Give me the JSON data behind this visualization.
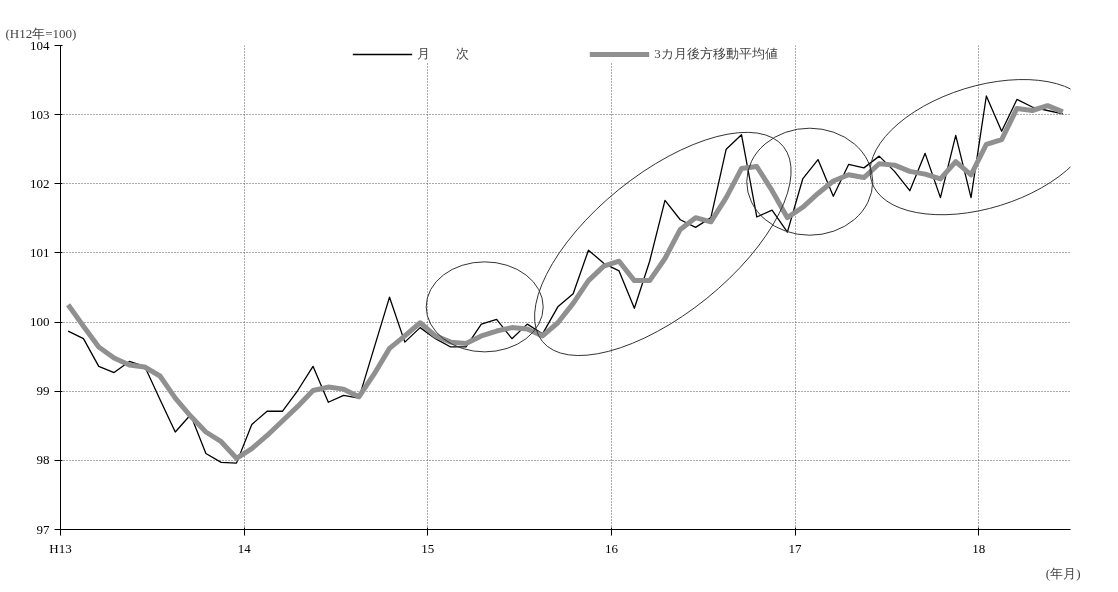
{
  "chart_data": {
    "type": "line",
    "ylabel": "(H12年=100)",
    "xlabel": "(年月)",
    "x": [
      13.0417,
      13.125,
      13.2083,
      13.2917,
      13.375,
      13.4583,
      13.5417,
      13.625,
      13.7083,
      13.7917,
      13.875,
      13.9583,
      14.0417,
      14.125,
      14.2083,
      14.2917,
      14.375,
      14.4583,
      14.5417,
      14.625,
      14.7083,
      14.7917,
      14.875,
      14.9583,
      15.0417,
      15.125,
      15.2083,
      15.2917,
      15.375,
      15.4583,
      15.5417,
      15.625,
      15.7083,
      15.7917,
      15.875,
      15.9583,
      16.0417,
      16.125,
      16.2083,
      16.2917,
      16.375,
      16.4583,
      16.5417,
      16.625,
      16.7083,
      16.7917,
      16.875,
      16.9583,
      17.0417,
      17.125,
      17.2083,
      17.2917,
      17.375,
      17.4583,
      17.5417,
      17.625,
      17.7083,
      17.7917,
      17.875,
      17.9583,
      18.0417,
      18.125,
      18.2083,
      18.2917,
      18.375,
      18.4583
    ],
    "series": [
      {
        "name": "月　　次",
        "color": "#000000",
        "values": [
          99.87,
          99.76,
          99.36,
          99.27,
          99.43,
          99.36,
          98.88,
          98.41,
          98.66,
          98.1,
          97.97,
          97.96,
          98.52,
          98.71,
          98.71,
          99.01,
          99.36,
          98.84,
          98.94,
          98.9,
          99.63,
          100.36,
          99.71,
          99.92,
          99.76,
          99.64,
          99.64,
          99.97,
          100.04,
          99.76,
          99.97,
          99.83,
          100.22,
          100.41,
          101.04,
          100.85,
          100.74,
          100.2,
          100.88,
          101.76,
          101.48,
          101.37,
          101.51,
          102.5,
          102.71,
          101.52,
          101.62,
          101.3,
          102.07,
          102.35,
          101.82,
          102.28,
          102.23,
          102.4,
          102.18,
          101.9,
          102.44,
          101.8,
          102.7,
          101.8,
          103.27,
          102.76,
          103.22,
          103.11,
          103.06,
          103.01
        ]
      },
      {
        "name": "3カ月後方移動平均値",
        "color": "#909090",
        "values": [
          100.25,
          99.94,
          99.64,
          99.48,
          99.38,
          99.35,
          99.22,
          98.9,
          98.64,
          98.41,
          98.27,
          98.03,
          98.17,
          98.36,
          98.57,
          98.78,
          99.01,
          99.06,
          99.03,
          98.92,
          99.25,
          99.62,
          99.8,
          99.99,
          99.8,
          99.71,
          99.69,
          99.8,
          99.87,
          99.92,
          99.9,
          99.8,
          99.99,
          100.27,
          100.6,
          100.81,
          100.88,
          100.6,
          100.6,
          100.92,
          101.34,
          101.51,
          101.45,
          101.8,
          102.22,
          102.25,
          101.9,
          101.51,
          101.66,
          101.86,
          102.04,
          102.13,
          102.09,
          102.29,
          102.27,
          102.18,
          102.14,
          102.07,
          102.32,
          102.13,
          102.57,
          102.64,
          103.09,
          103.06,
          103.13,
          103.04
        ]
      }
    ],
    "xlim": [
      13,
      18.5
    ],
    "xticks": [
      {
        "value": 13,
        "label": "H13"
      },
      14,
      15,
      16,
      17,
      18
    ],
    "ylim": [
      97,
      104
    ],
    "yticks": [
      97,
      98,
      99,
      100,
      101,
      102,
      103,
      104
    ],
    "grid": true,
    "legend": "top",
    "marker": "none",
    "line_style": "solid"
  }
}
